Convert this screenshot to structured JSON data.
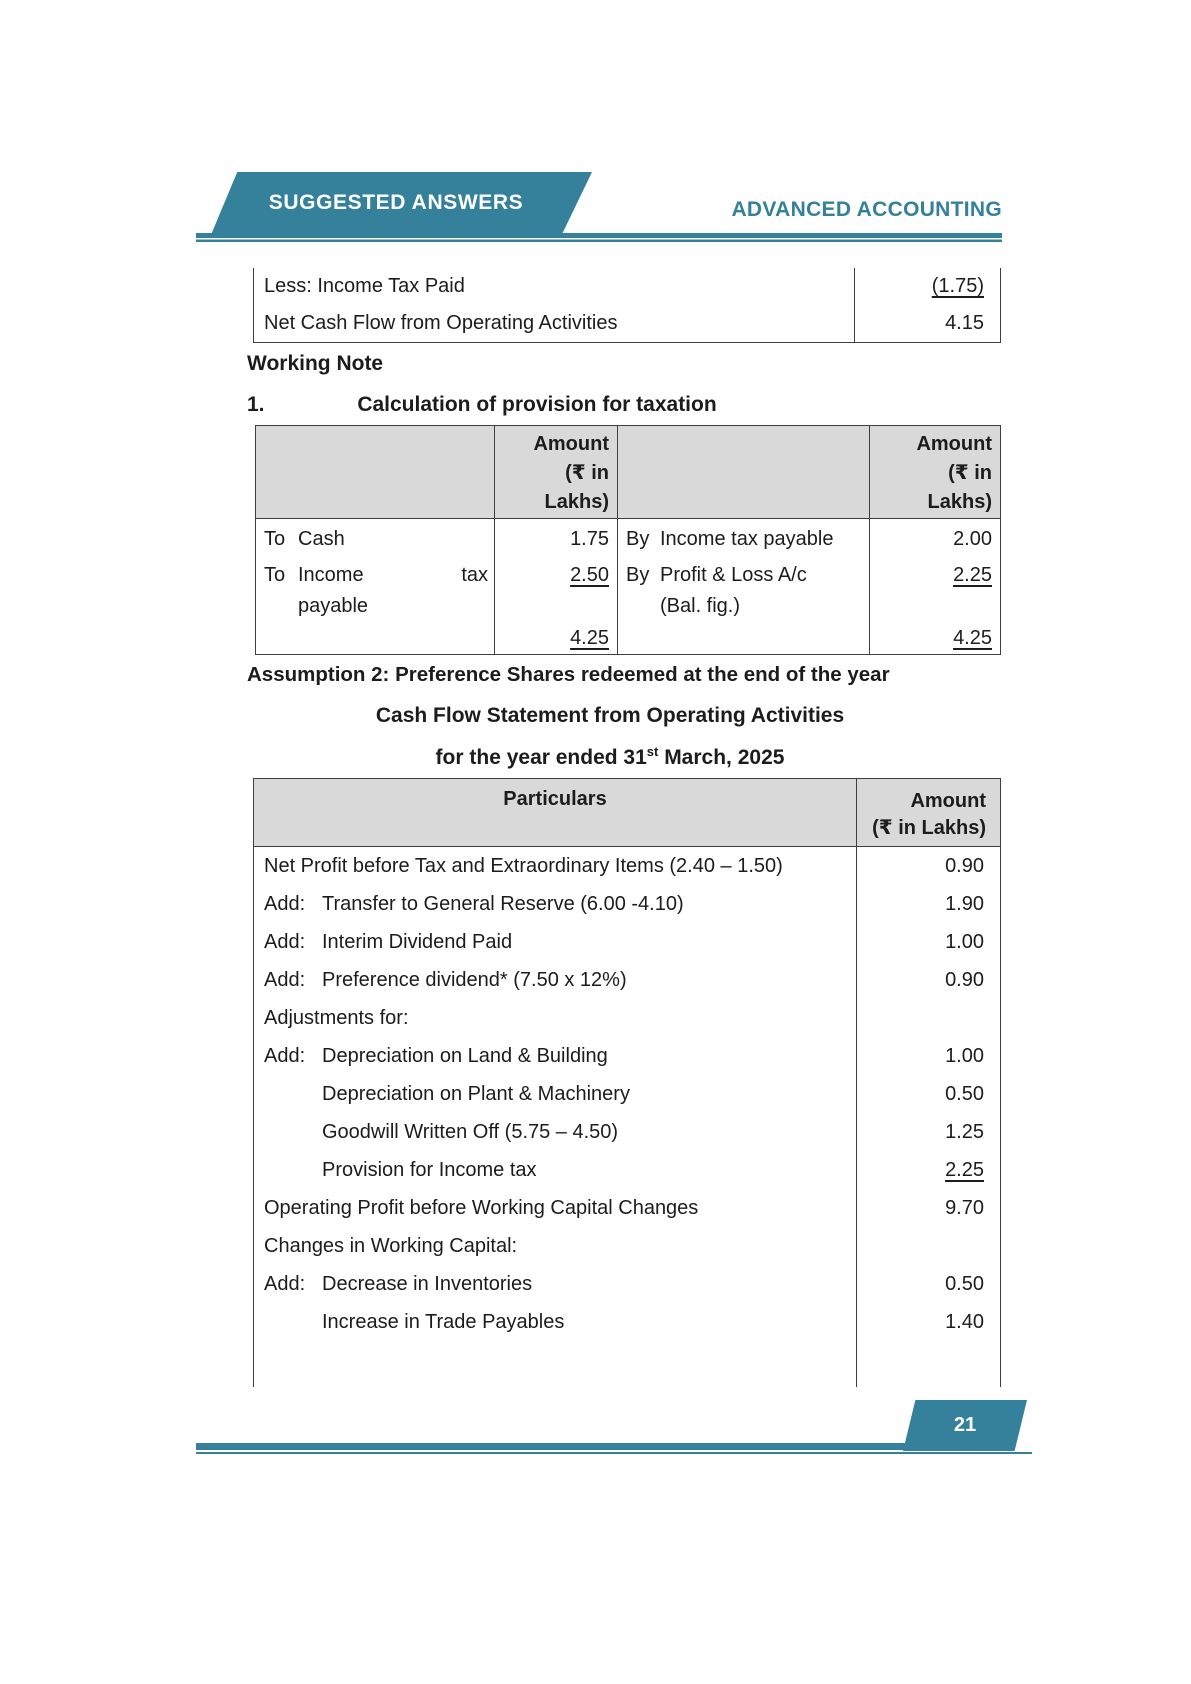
{
  "colors": {
    "teal": "#35809B",
    "table_header_bg": "#D9D9D9"
  },
  "header": {
    "banner_title": "SUGGESTED ANSWERS",
    "subject_title": "ADVANCED ACCOUNTING"
  },
  "page": {
    "number": "21"
  },
  "fragment_table": {
    "rows": [
      {
        "label": "Less: Income Tax Paid",
        "amount": "(1.75)"
      },
      {
        "label": "Net Cash Flow from Operating Activities",
        "amount": "4.15"
      }
    ]
  },
  "working_note": {
    "heading": "Working Note",
    "item_number": "1.",
    "item_title": "Calculation of provision for taxation"
  },
  "taxation_account": {
    "amount_header": {
      "line1": "Amount",
      "line2": "(₹ in",
      "line3": "Lakhs)"
    },
    "debit": {
      "row1": {
        "prefix": "To",
        "label": "Cash",
        "amount": "1.75"
      },
      "row2": {
        "prefix": "To",
        "word1": "Income",
        "word2": "tax",
        "line2": "payable",
        "amount": "2.50"
      },
      "total": "4.25"
    },
    "credit": {
      "row1": {
        "prefix": "By",
        "label": "Income tax payable",
        "amount": "2.00"
      },
      "row2": {
        "prefix": "By",
        "line1": "Profit & Loss A/c",
        "line2": "(Bal. fig.)",
        "amount": "2.25"
      },
      "total": "4.25"
    }
  },
  "assumption_heading": "Assumption 2: Preference Shares redeemed at the end of the year",
  "statement": {
    "title": "Cash Flow Statement from Operating Activities",
    "subtitle_pre": "for the year ended 31",
    "subtitle_sup": "st",
    "subtitle_post": " March, 2025",
    "col_particulars": "Particulars",
    "col_amount_line1": "Amount",
    "col_amount_line2": "(₹ in Lakhs)",
    "rows": [
      {
        "prefix": "",
        "label": "Net Profit before Tax and Extraordinary Items (2.40 – 1.50)",
        "amount": "0.90"
      },
      {
        "prefix": "Add:",
        "label": "Transfer to General Reserve (6.00 -4.10)",
        "amount": "1.90"
      },
      {
        "prefix": "Add:",
        "label": "Interim Dividend Paid",
        "amount": "1.00"
      },
      {
        "prefix": "Add:",
        "label": "Preference dividend* (7.50 x 12%)",
        "amount": "0.90"
      },
      {
        "prefix": "",
        "label": "Adjustments for:",
        "amount": ""
      },
      {
        "prefix": "Add:",
        "label": "Depreciation on Land & Building",
        "amount": "1.00"
      },
      {
        "prefix": "",
        "label": "Depreciation on Plant & Machinery",
        "amount": "0.50"
      },
      {
        "prefix": "",
        "label": "Goodwill Written Off (5.75 – 4.50)",
        "amount": "1.25"
      },
      {
        "prefix": "",
        "label": "Provision for Income tax",
        "amount": "2.25"
      },
      {
        "prefix": "",
        "label": "Operating Profit before Working Capital Changes",
        "amount": "9.70"
      },
      {
        "prefix": "",
        "label": "Changes in Working Capital:",
        "amount": ""
      },
      {
        "prefix": "Add:",
        "label": "Decrease in Inventories",
        "amount": "0.50"
      },
      {
        "prefix": "",
        "label": "Increase in Trade Payables",
        "amount": "1.40"
      }
    ]
  }
}
